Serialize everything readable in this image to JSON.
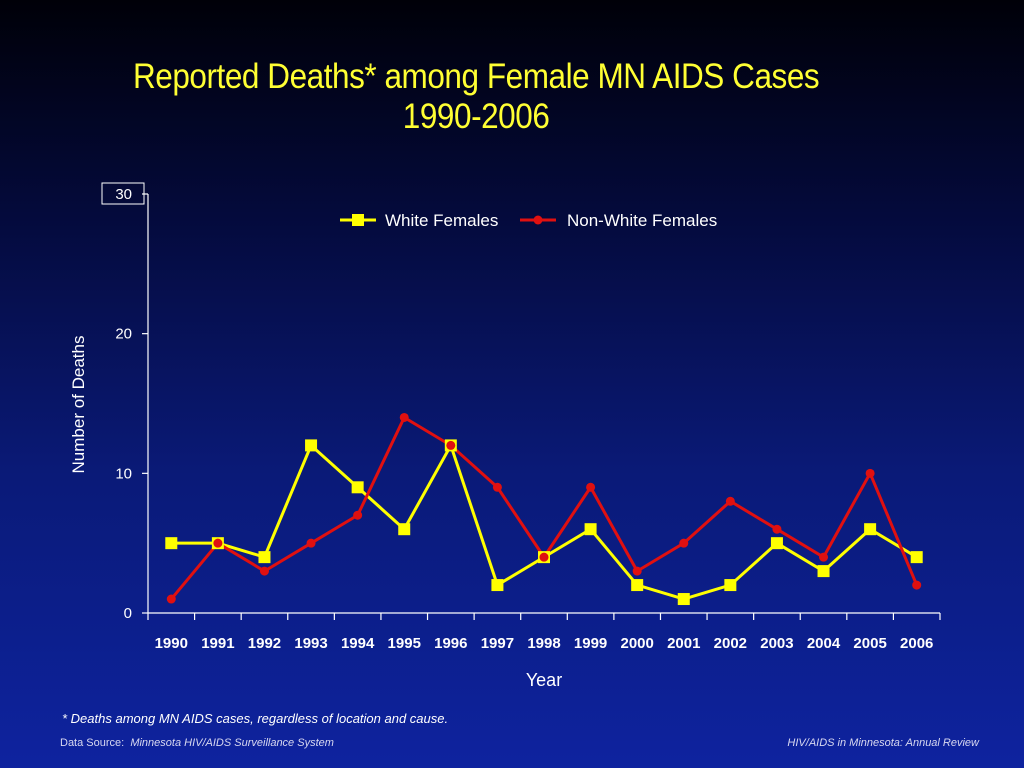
{
  "title_line1": "Reported Deaths* among Female MN AIDS Cases",
  "title_line2": "1990-2006",
  "footnote": "* Deaths among MN AIDS cases, regardless of location and cause.",
  "source_label": "Data Source:",
  "source_value": "Minnesota HIV/AIDS Surveillance System",
  "publication": "HIV/AIDS in Minnesota: Annual Review",
  "colors": {
    "white_females": "#ffff00",
    "non_white_females": "#e01010",
    "axis": "#ffffff",
    "title": "#ffff33"
  },
  "chart_data": {
    "type": "line",
    "xlabel": "Year",
    "ylabel": "Number of Deaths",
    "ylim": [
      0,
      30
    ],
    "yticks": [
      0,
      10,
      20,
      30
    ],
    "grid": false,
    "legend_position": "top-center",
    "categories": [
      "1990",
      "1991",
      "1992",
      "1993",
      "1994",
      "1995",
      "1996",
      "1997",
      "1998",
      "1999",
      "2000",
      "2001",
      "2002",
      "2003",
      "2004",
      "2005",
      "2006"
    ],
    "series": [
      {
        "name": "White Females",
        "marker": "square",
        "color": "#ffff00",
        "values": [
          5,
          5,
          4,
          12,
          9,
          6,
          12,
          2,
          4,
          6,
          2,
          1,
          2,
          5,
          3,
          6,
          4
        ]
      },
      {
        "name": "Non-White Females",
        "marker": "circle",
        "color": "#e01010",
        "values": [
          1,
          5,
          3,
          5,
          7,
          14,
          12,
          9,
          4,
          9,
          3,
          5,
          8,
          6,
          4,
          10,
          2
        ]
      }
    ]
  }
}
